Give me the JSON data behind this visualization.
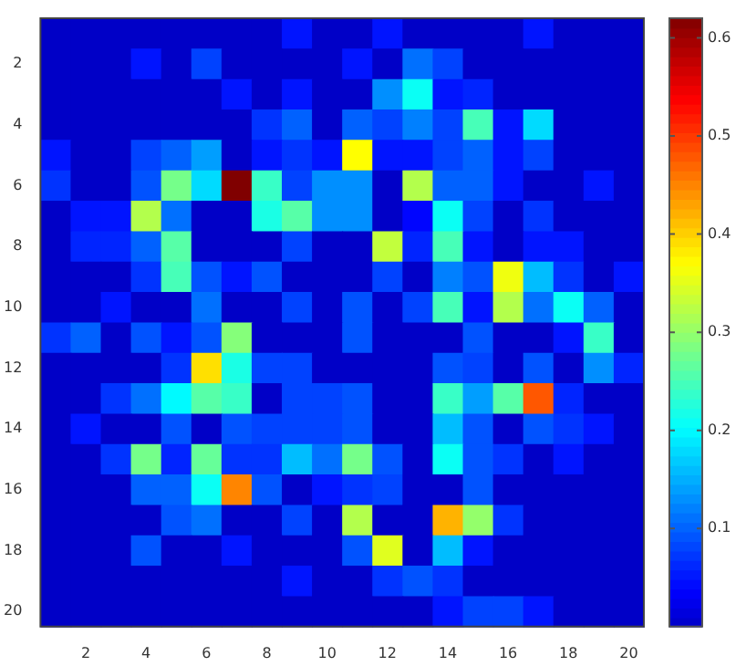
{
  "chart_data": {
    "type": "heatmap",
    "categories": [
      null,
      "2",
      null,
      "4",
      null,
      "6",
      null,
      "8",
      null,
      "10",
      null,
      "12",
      null,
      "14",
      null,
      "16",
      null,
      "18",
      null,
      "20"
    ],
    "y_categories": [
      null,
      "2",
      null,
      "4",
      null,
      "6",
      null,
      "8",
      null,
      "10",
      null,
      "12",
      null,
      "14",
      null,
      "16",
      null,
      "18",
      null,
      "20"
    ],
    "clim": [
      0,
      0.62
    ],
    "cticks": [
      0.1,
      0.2,
      0.3,
      0.4,
      0.5,
      0.6
    ],
    "cells": [
      [
        0,
        0,
        0,
        0,
        0,
        0,
        0,
        0,
        0.05,
        0,
        0,
        0.05,
        0,
        0,
        0,
        0,
        0.05,
        0,
        0,
        0
      ],
      [
        0,
        0,
        0,
        0.05,
        0,
        0.08,
        0,
        0,
        0,
        0,
        0.05,
        0,
        0.11,
        0.08,
        0,
        0,
        0,
        0,
        0,
        0
      ],
      [
        0,
        0,
        0,
        0,
        0,
        0,
        0.05,
        0,
        0.05,
        0,
        0,
        0.13,
        0.21,
        0.05,
        0.06,
        0,
        0,
        0,
        0,
        0
      ],
      [
        0,
        0,
        0,
        0,
        0,
        0,
        0,
        0.07,
        0.1,
        0,
        0.1,
        0.08,
        0.12,
        0.08,
        0.25,
        0.05,
        0.18,
        0,
        0,
        0
      ],
      [
        0.05,
        0,
        0,
        0.08,
        0.1,
        0.14,
        0,
        0.05,
        0.07,
        0.05,
        0.37,
        0.05,
        0.05,
        0.08,
        0.1,
        0.05,
        0.08,
        0,
        0,
        0
      ],
      [
        0.07,
        0,
        0,
        0.09,
        0.28,
        0.18,
        0.62,
        0.24,
        0.08,
        0.13,
        0.13,
        0,
        0.32,
        0.1,
        0.1,
        0.05,
        0,
        0,
        0.05,
        0
      ],
      [
        0,
        0.05,
        0.05,
        0.32,
        0.11,
        0,
        0,
        0.22,
        0.26,
        0.13,
        0.13,
        0,
        0.04,
        0.21,
        0.08,
        0,
        0.07,
        0,
        0,
        0
      ],
      [
        0,
        0.06,
        0.06,
        0.1,
        0.26,
        0,
        0,
        0,
        0.08,
        0,
        0,
        0.33,
        0.06,
        0.25,
        0.05,
        0,
        0.05,
        0.05,
        0,
        0
      ],
      [
        0,
        0,
        0,
        0.07,
        0.25,
        0.09,
        0.05,
        0.09,
        0,
        0,
        0,
        0.08,
        0,
        0.12,
        0.09,
        0.36,
        0.16,
        0.07,
        0,
        0.05
      ],
      [
        0,
        0,
        0.05,
        0,
        0,
        0.11,
        0,
        0,
        0.08,
        0,
        0.09,
        0,
        0.08,
        0.25,
        0.05,
        0.32,
        0.11,
        0.21,
        0.1,
        0
      ],
      [
        0.07,
        0.1,
        0,
        0.09,
        0.05,
        0.09,
        0.29,
        0,
        0,
        0,
        0.09,
        0,
        0,
        0,
        0.09,
        0,
        0,
        0.05,
        0.24,
        0
      ],
      [
        0,
        0,
        0,
        0,
        0.07,
        0.39,
        0.22,
        0.08,
        0.08,
        0,
        0,
        0,
        0,
        0.09,
        0.08,
        0,
        0.09,
        0,
        0.13,
        0.06
      ],
      [
        0,
        0,
        0.07,
        0.11,
        0.2,
        0.26,
        0.24,
        0,
        0.08,
        0.08,
        0.09,
        0,
        0,
        0.24,
        0.14,
        0.26,
        0.48,
        0.06,
        0,
        0
      ],
      [
        0,
        0.05,
        0,
        0,
        0.09,
        0,
        0.09,
        0.08,
        0.08,
        0.08,
        0.09,
        0,
        0,
        0.16,
        0.09,
        0,
        0.09,
        0.07,
        0.05,
        0
      ],
      [
        0,
        0,
        0.07,
        0.28,
        0.06,
        0.27,
        0.07,
        0.07,
        0.16,
        0.11,
        0.28,
        0.09,
        0,
        0.21,
        0.09,
        0.07,
        0,
        0.05,
        0,
        0
      ],
      [
        0,
        0,
        0,
        0.1,
        0.1,
        0.21,
        0.45,
        0.09,
        0,
        0.05,
        0.07,
        0.08,
        0,
        0,
        0.09,
        0,
        0,
        0,
        0,
        0
      ],
      [
        0,
        0,
        0,
        0,
        0.09,
        0.11,
        0,
        0,
        0.08,
        0,
        0.32,
        0,
        0,
        0.42,
        0.3,
        0.07,
        0,
        0,
        0,
        0
      ],
      [
        0,
        0,
        0,
        0.09,
        0,
        0,
        0.05,
        0,
        0,
        0,
        0.09,
        0.35,
        0,
        0.16,
        0.05,
        0,
        0,
        0,
        0,
        0
      ],
      [
        0,
        0,
        0,
        0,
        0,
        0,
        0,
        0,
        0.05,
        0,
        0,
        0.07,
        0.09,
        0.07,
        0,
        0,
        0,
        0,
        0,
        0
      ],
      [
        0,
        0,
        0,
        0,
        0,
        0,
        0,
        0,
        0,
        0,
        0,
        0,
        0,
        0.05,
        0.08,
        0.08,
        0.05,
        0,
        0,
        0
      ]
    ]
  }
}
